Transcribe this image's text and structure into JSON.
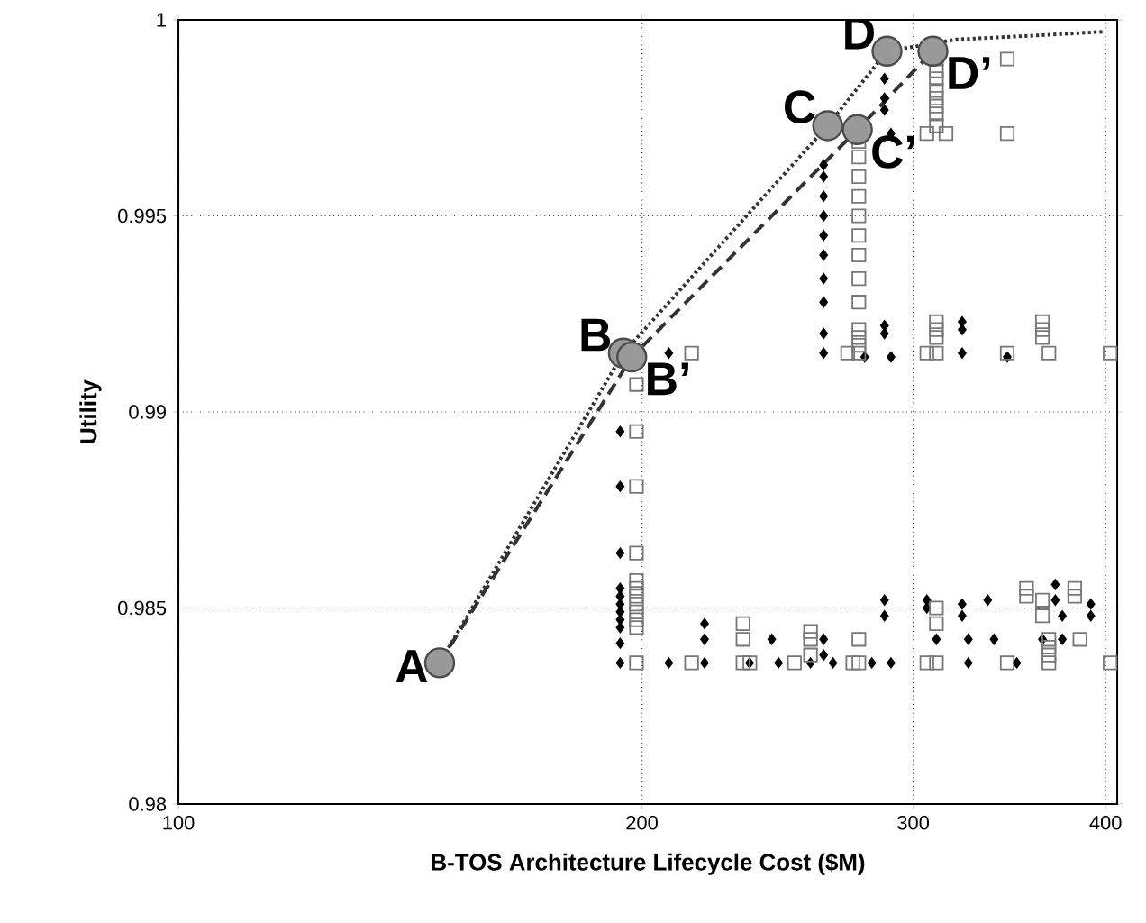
{
  "chart_data": {
    "type": "scatter",
    "xlabel": "B-TOS Architecture Lifecycle Cost ($M)",
    "ylabel": "Utility",
    "log": "x",
    "xlim": [
      100,
      407
    ],
    "ylim": [
      0.98,
      1
    ],
    "xticks": [
      100,
      200,
      300,
      400
    ],
    "yticks": [
      0.98,
      0.985,
      0.99,
      0.995,
      1
    ],
    "grid": true,
    "series": [
      {
        "marker": "diamond",
        "color": "#000000",
        "x": [
          193.6,
          208.2,
          219.6,
          219.6,
          219.6,
          234.9,
          242.8,
          245.3,
          257.3,
          262.4,
          262.4,
          266.1,
          282.0,
          287.4,
          287.4,
          290.2,
          306.2,
          306.2,
          310.6,
          322.8,
          322.8,
          325.8,
          325.8,
          335.4,
          338.6,
          350.3,
          364.0,
          371.1,
          371.1,
          375.0,
          375.0,
          391.3,
          391.3,
          193.6,
          193.6,
          193.6,
          193.6,
          193.6,
          193.6,
          193.6,
          193.6,
          193.6,
          193.6,
          208.2,
          262.4,
          262.4,
          262.4,
          262.4,
          262.4,
          262.4,
          262.4,
          262.4,
          262.4,
          262.4,
          279.0,
          290.2,
          287.4,
          287.4,
          322.8,
          322.8,
          322.8,
          345.3,
          290.2,
          287.4,
          287.4,
          287.4
        ],
        "values": [
          0.9836,
          0.9836,
          0.9836,
          0.9842,
          0.9846,
          0.9836,
          0.9842,
          0.9836,
          0.9836,
          0.9842,
          0.9838,
          0.9836,
          0.9836,
          0.9848,
          0.9852,
          0.9836,
          0.9852,
          0.985,
          0.9842,
          0.9851,
          0.9848,
          0.9836,
          0.9842,
          0.9852,
          0.9842,
          0.9836,
          0.9842,
          0.9856,
          0.9852,
          0.9848,
          0.9842,
          0.9851,
          0.9848,
          0.9855,
          0.9853,
          0.9851,
          0.9849,
          0.9847,
          0.9845,
          0.9841,
          0.9864,
          0.9881,
          0.9895,
          0.9915,
          0.9915,
          0.992,
          0.9928,
          0.9934,
          0.994,
          0.9945,
          0.995,
          0.9955,
          0.996,
          0.9963,
          0.9914,
          0.9914,
          0.9922,
          0.992,
          0.9915,
          0.9921,
          0.9923,
          0.9914,
          0.9971,
          0.9985,
          0.998,
          0.9977
        ]
      },
      {
        "marker": "square",
        "color": "#777777",
        "x": [
          198.4,
          198.4,
          198.4,
          198.4,
          198.4,
          198.4,
          198.4,
          198.4,
          198.4,
          198.4,
          198.4,
          198.4,
          215.4,
          232.6,
          232.6,
          232.6,
          235.0,
          251.2,
          257.3,
          257.3,
          257.3,
          274.1,
          276.6,
          276.6,
          306.2,
          310.6,
          310.6,
          310.6,
          345.3,
          355.4,
          355.4,
          364.0,
          364.0,
          367.5,
          367.5,
          367.5,
          367.5,
          382.0,
          382.0,
          385.0,
          402.7,
          215.4,
          276.6,
          276.6,
          276.6,
          276.6,
          276.6,
          276.6,
          276.6,
          276.6,
          276.6,
          276.6,
          276.6,
          276.6,
          276.6,
          272.0,
          306.2,
          310.6,
          310.6,
          310.6,
          310.6,
          345.3,
          364.0,
          364.0,
          364.0,
          367.5,
          402.7,
          310.6,
          310.6,
          310.6,
          310.6,
          310.6,
          310.6,
          310.6,
          310.6,
          306.2,
          315.1,
          345.3,
          345.3
        ],
        "values": [
          0.9836,
          0.9845,
          0.9847,
          0.9849,
          0.9851,
          0.9853,
          0.9855,
          0.9857,
          0.9864,
          0.9881,
          0.9895,
          0.9907,
          0.9836,
          0.9836,
          0.9842,
          0.9846,
          0.9836,
          0.9836,
          0.9838,
          0.9842,
          0.9844,
          0.9836,
          0.9836,
          0.9842,
          0.9836,
          0.9836,
          0.9846,
          0.985,
          0.9836,
          0.9853,
          0.9855,
          0.9848,
          0.9852,
          0.9836,
          0.9838,
          0.984,
          0.9842,
          0.9853,
          0.9855,
          0.9842,
          0.9836,
          0.9915,
          0.9915,
          0.9917,
          0.9919,
          0.9921,
          0.9928,
          0.9934,
          0.994,
          0.9945,
          0.995,
          0.9955,
          0.996,
          0.9965,
          0.9969,
          0.9915,
          0.9915,
          0.9915,
          0.9919,
          0.9921,
          0.9923,
          0.9915,
          0.9919,
          0.9921,
          0.9923,
          0.9915,
          0.9915,
          0.9973,
          0.9976,
          0.9978,
          0.998,
          0.9982,
          0.9985,
          0.9987,
          0.999,
          0.9971,
          0.9971,
          0.999,
          0.9971
        ]
      },
      {
        "type": "line",
        "line_style": "dotted",
        "color": "#333333",
        "x": [
          147.8,
          194.5,
          264.0,
          288.5,
          320.0,
          360.0,
          400.0
        ],
        "values": [
          0.9836,
          0.9915,
          0.9973,
          0.9992,
          0.9995,
          0.9996,
          0.9997
        ]
      },
      {
        "type": "line",
        "line_style": "dashed",
        "color": "#333333",
        "x": [
          147.8,
          197.0,
          276.0,
          309.0
        ],
        "values": [
          0.9836,
          0.9914,
          0.9972,
          0.9992
        ]
      },
      {
        "marker": "circle",
        "color": "#999999",
        "x": [
          147.8,
          194.5,
          264.0,
          288.5,
          197.0,
          276.0,
          309.0
        ],
        "values": [
          0.9836,
          0.9915,
          0.9973,
          0.9992,
          0.9914,
          0.9972,
          0.9992
        ]
      }
    ],
    "annotations": [
      {
        "text": "A",
        "x": 147.8,
        "y": 0.9836
      },
      {
        "text": "B",
        "x": 194.5,
        "y": 0.9915
      },
      {
        "text": "C",
        "x": 264.0,
        "y": 0.9973
      },
      {
        "text": "D",
        "x": 288.5,
        "y": 0.9992
      },
      {
        "text": "B’",
        "x": 197.0,
        "y": 0.9914
      },
      {
        "text": "C’",
        "x": 276.0,
        "y": 0.9972
      },
      {
        "text": "D’",
        "x": 309.0,
        "y": 0.9992
      }
    ]
  }
}
